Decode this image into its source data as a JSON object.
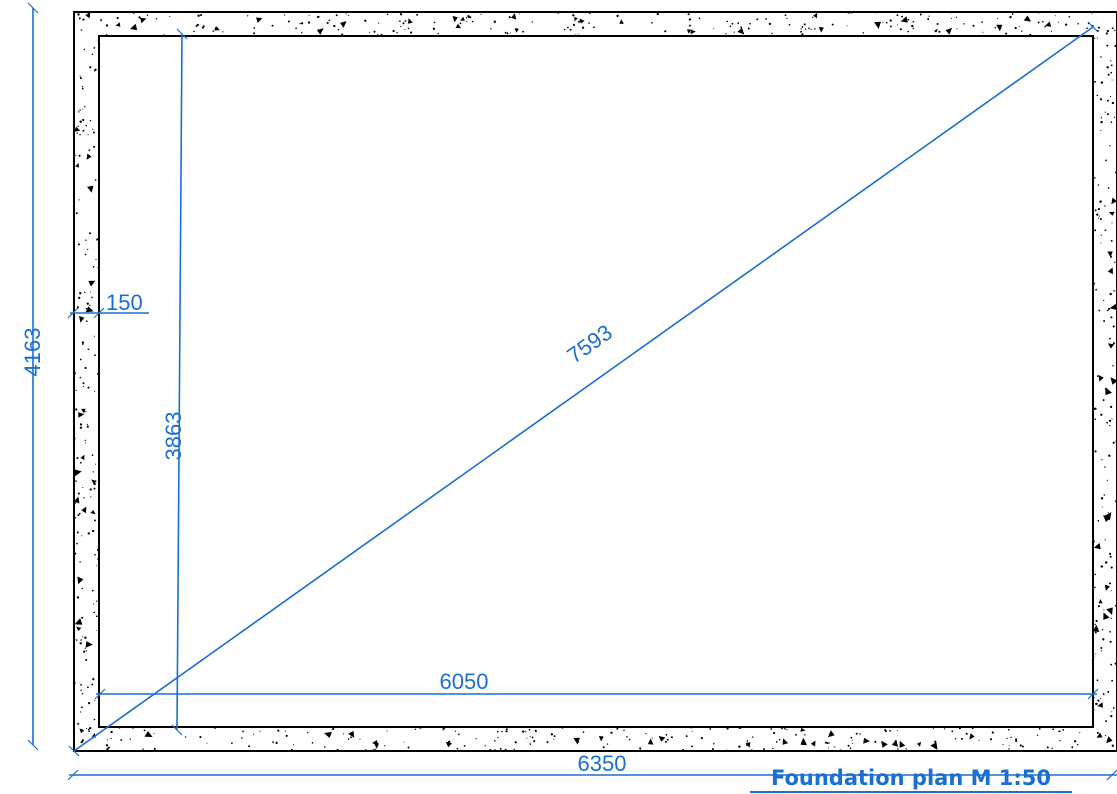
{
  "drawing": {
    "title": "Foundation plan M 1:50",
    "line_color": "#1a6fd1",
    "outline_color": "#000000",
    "hatch": "concrete"
  },
  "dimensions": {
    "overall_width": "6350",
    "overall_height": "4163",
    "inner_width": "6050",
    "inner_height": "3863",
    "wall_thickness": "150",
    "diagonal": "7593"
  }
}
